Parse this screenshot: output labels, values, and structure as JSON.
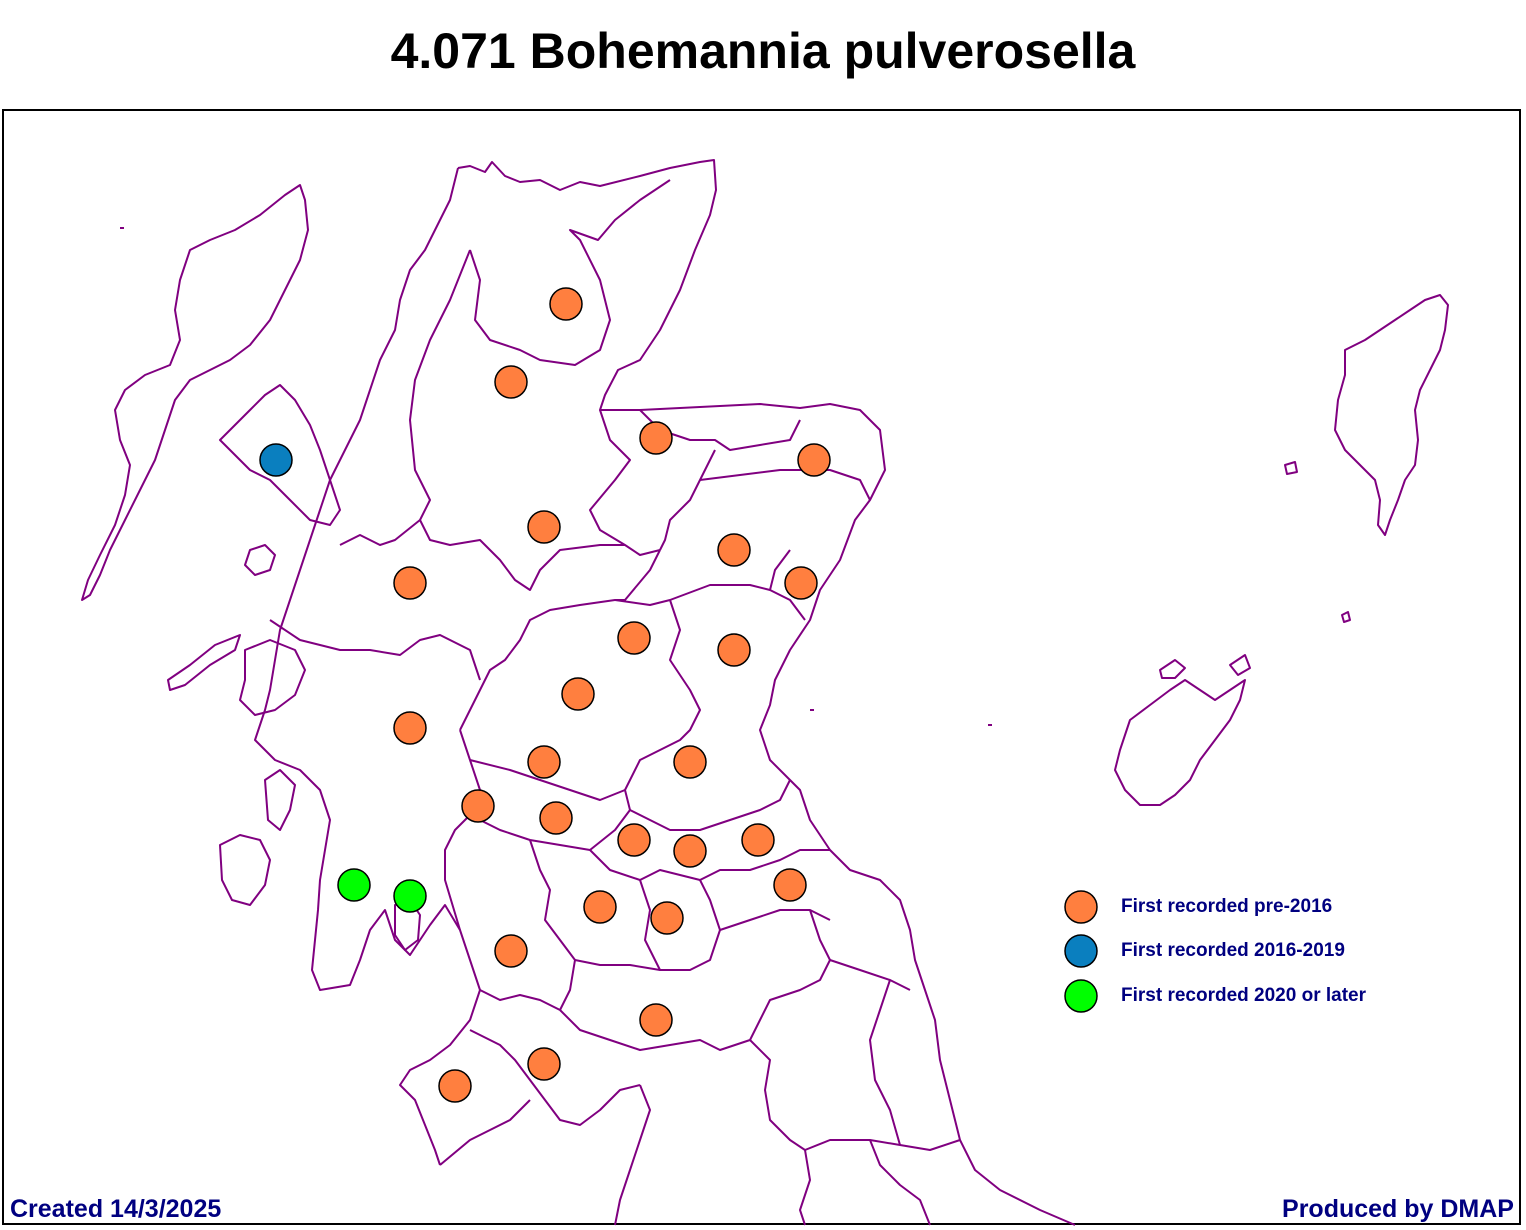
{
  "title": "4.071 Bohemannia pulverosella",
  "footer": {
    "created": "Created 14/3/2025",
    "produced": "Produced by DMAP"
  },
  "colors": {
    "boundary": "#800080",
    "pre_2016": "#FF7F3F",
    "2016_2019": "#0A7FBF",
    "2020_later": "#00FF00",
    "text": "#000080"
  },
  "legend": [
    {
      "label": "First recorded pre-2016",
      "category": "pre_2016"
    },
    {
      "label": "First recorded 2016-2019",
      "category": "2016_2019"
    },
    {
      "label": "First recorded 2020 or later",
      "category": "2020_later"
    }
  ],
  "records": [
    {
      "category": "pre_2016"
    },
    {
      "category": "pre_2016"
    },
    {
      "category": "pre_2016"
    },
    {
      "category": "pre_2016"
    },
    {
      "category": "2016_2019"
    },
    {
      "category": "pre_2016"
    },
    {
      "category": "pre_2016"
    },
    {
      "category": "pre_2016"
    },
    {
      "category": "pre_2016"
    },
    {
      "category": "pre_2016"
    },
    {
      "category": "pre_2016"
    },
    {
      "category": "pre_2016"
    },
    {
      "category": "pre_2016"
    },
    {
      "category": "pre_2016"
    },
    {
      "category": "pre_2016"
    },
    {
      "category": "pre_2016"
    },
    {
      "category": "pre_2016"
    },
    {
      "category": "pre_2016"
    },
    {
      "category": "pre_2016"
    },
    {
      "category": "pre_2016"
    },
    {
      "category": "pre_2016"
    },
    {
      "category": "2020_later"
    },
    {
      "category": "2020_later"
    },
    {
      "category": "pre_2016"
    },
    {
      "category": "pre_2016"
    },
    {
      "category": "pre_2016"
    },
    {
      "category": "pre_2016"
    },
    {
      "category": "pre_2016"
    },
    {
      "category": "pre_2016"
    }
  ]
}
